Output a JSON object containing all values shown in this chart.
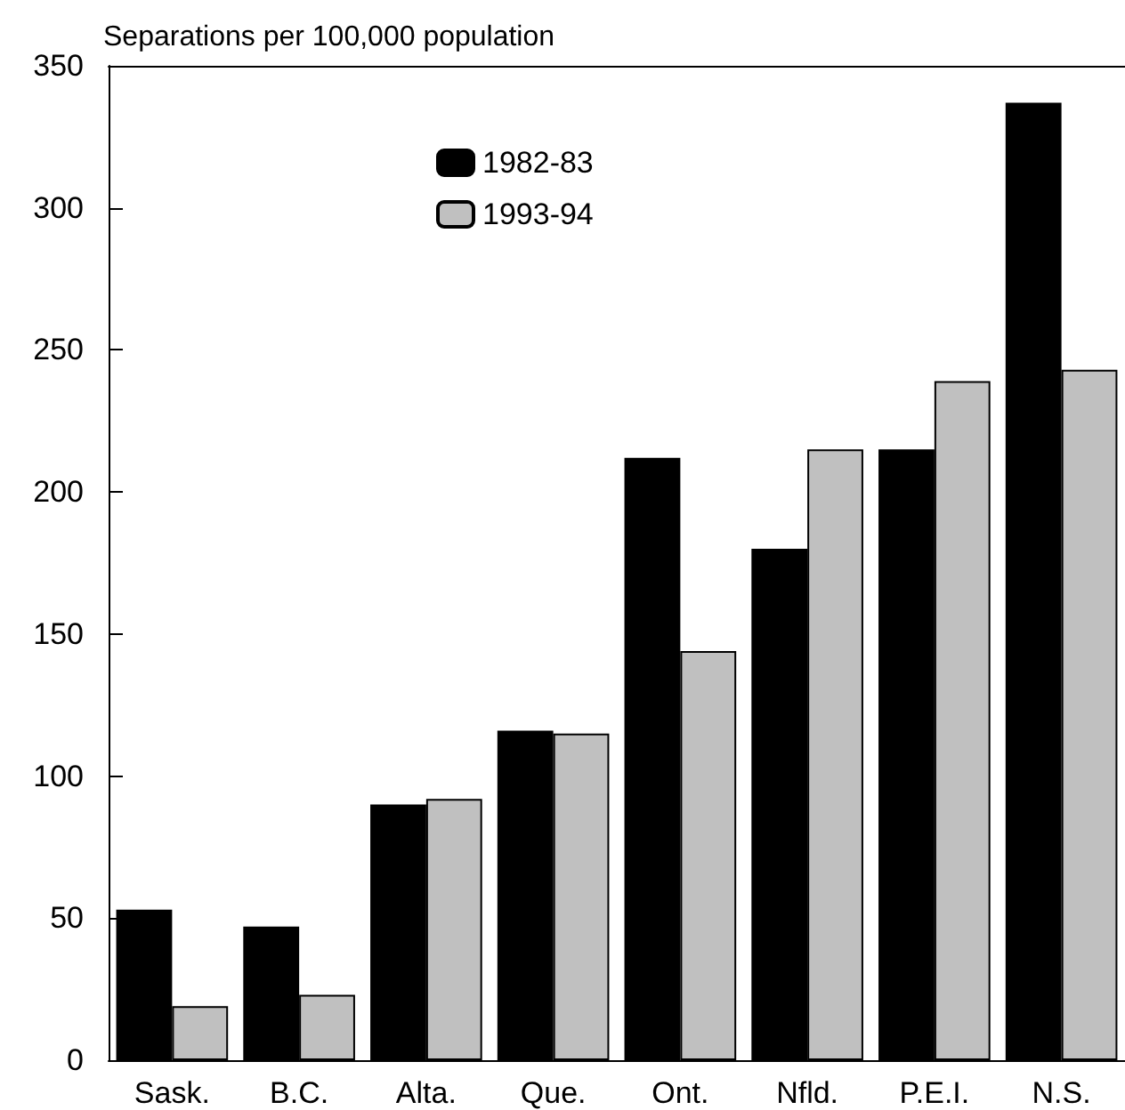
{
  "chart_data": {
    "type": "bar",
    "ylabel": "Separations per 100,000 population",
    "categories": [
      "Sask.",
      "B.C.",
      "Alta.",
      "Que.",
      "Ont.",
      "Nfld.",
      "P.E.I.",
      "N.S."
    ],
    "series": [
      {
        "name": "1982-83",
        "color": "#000000",
        "values": [
          53,
          47,
          90,
          116,
          212,
          180,
          215,
          337
        ]
      },
      {
        "name": "1993-94",
        "color": "#c0c0c0",
        "values": [
          19,
          23,
          92,
          115,
          144,
          215,
          239,
          243
        ]
      }
    ],
    "ylim": [
      0,
      350
    ],
    "yticks": [
      0,
      50,
      100,
      150,
      200,
      250,
      300,
      350
    ],
    "grid": false,
    "legend": "top"
  }
}
